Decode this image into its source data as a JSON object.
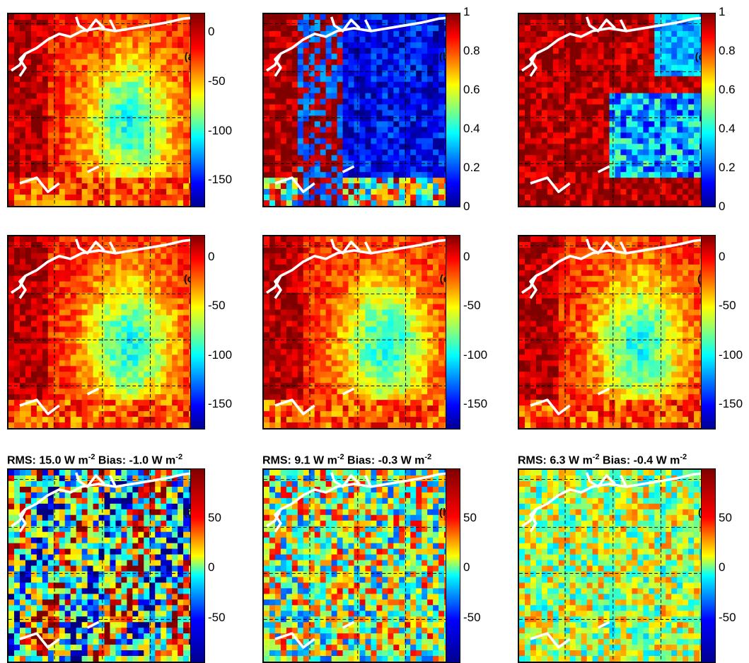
{
  "panels": [
    {
      "id": "a",
      "label": "(a)",
      "scheme": "flux",
      "seed": 11
    },
    {
      "id": "b",
      "label": "(b)",
      "scheme": "frac_low",
      "seed": 23
    },
    {
      "id": "c",
      "label": "(c)",
      "scheme": "frac_high",
      "seed": 37
    },
    {
      "id": "d",
      "label": "(d)",
      "scheme": "flux",
      "seed": 41
    },
    {
      "id": "e",
      "label": "(e)",
      "scheme": "flux",
      "seed": 53
    },
    {
      "id": "f",
      "label": "(f)",
      "scheme": "flux",
      "seed": 67
    },
    {
      "id": "g",
      "label": "(g)",
      "scheme": "diff_strong",
      "seed": 71
    },
    {
      "id": "h",
      "label": "(h)",
      "scheme": "diff_mid",
      "seed": 83
    },
    {
      "id": "i",
      "label": "(i)",
      "scheme": "diff_noise",
      "seed": 97
    }
  ],
  "colorbars": {
    "flux": {
      "ticks": [
        "0",
        "-50",
        "-100",
        "-150"
      ],
      "ticks_first_row": [
        "0",
        "-50",
        "-100",
        "-150"
      ]
    },
    "fraction": {
      "ticks": [
        "1",
        "0.8",
        "0.6",
        "0.4",
        "0.2",
        "0"
      ]
    },
    "diff": {
      "ticks": [
        "50",
        "0",
        "-50"
      ]
    }
  },
  "stats": {
    "g": {
      "rms_prefix": "RMS: 15.0 W m",
      "rms_exp": "-2",
      "bias_prefix": " Bias: -1.0 W m",
      "bias_exp": "-2"
    },
    "h": {
      "rms_prefix": "RMS: 9.1 W m",
      "rms_exp": "-2",
      "bias_prefix": " Bias: -0.3 W m",
      "bias_exp": "-2"
    },
    "i": {
      "rms_prefix": "RMS: 6.3 W m",
      "rms_exp": "-2",
      "bias_prefix": " Bias: -0.4 W m",
      "bias_exp": "-2"
    }
  },
  "colors": {
    "jet_dark_blue": "#00008f",
    "jet_dark_red": "#800000",
    "coastline": "#ffffff",
    "grid": "#000000"
  }
}
